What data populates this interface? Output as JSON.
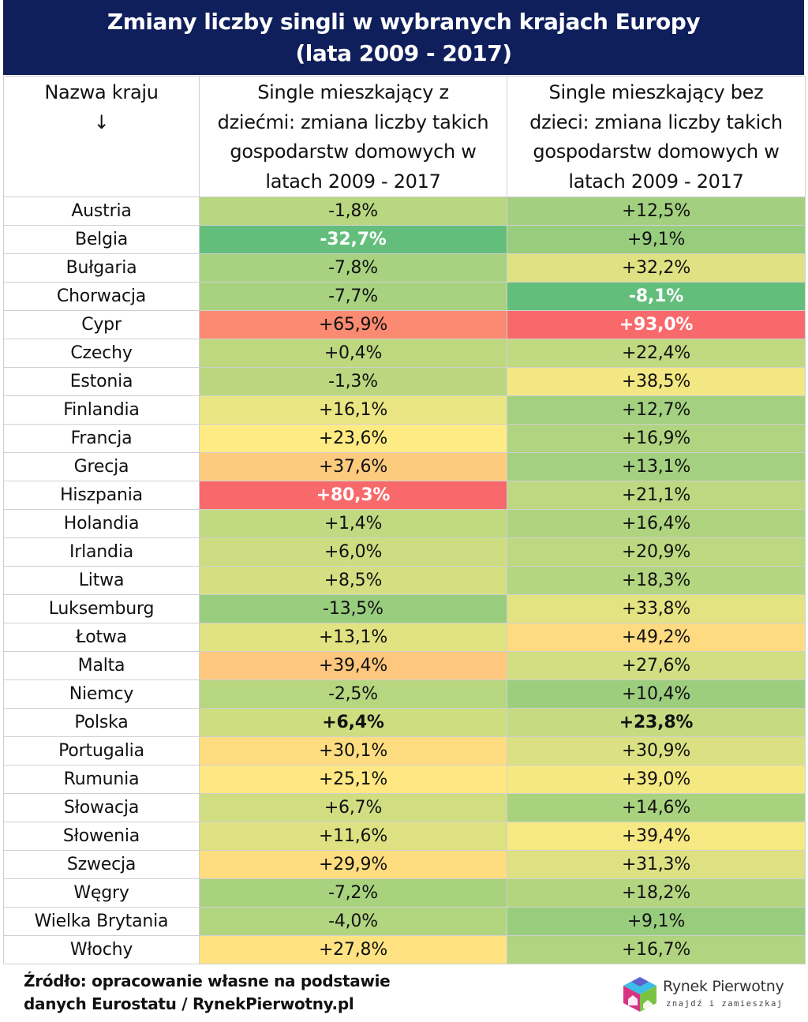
{
  "chart_data": {
    "type": "table",
    "title_lines": [
      "Zmiany liczby singli w wybranych krajach Europy",
      "(lata 2009 - 2017)"
    ],
    "columns": [
      {
        "key": "country",
        "header_lines": [
          "Nazwa kraju",
          "↓"
        ]
      },
      {
        "key": "with_children",
        "header_lines": [
          "Single mieszkający z",
          "dziećmi: zmiana liczby takich",
          "gospodarstw domowych w",
          "latach 2009 - 2017"
        ]
      },
      {
        "key": "without_children",
        "header_lines": [
          "Single mieszkający bez",
          "dzieci: zmiana liczby takich",
          "gospodarstw domowych w",
          "latach 2009 - 2017"
        ]
      }
    ],
    "rows": [
      {
        "country": "Austria",
        "with_children": "-1,8%",
        "without_children": "+12,5%"
      },
      {
        "country": "Belgia",
        "with_children": "-32,7%",
        "without_children": "+9,1%"
      },
      {
        "country": "Bułgaria",
        "with_children": "-7,8%",
        "without_children": "+32,2%"
      },
      {
        "country": "Chorwacja",
        "with_children": "-7,7%",
        "without_children": "-8,1%"
      },
      {
        "country": "Cypr",
        "with_children": "+65,9%",
        "without_children": "+93,0%"
      },
      {
        "country": "Czechy",
        "with_children": "+0,4%",
        "without_children": "+22,4%"
      },
      {
        "country": "Estonia",
        "with_children": "-1,3%",
        "without_children": "+38,5%"
      },
      {
        "country": "Finlandia",
        "with_children": "+16,1%",
        "without_children": "+12,7%"
      },
      {
        "country": "Francja",
        "with_children": "+23,6%",
        "without_children": "+16,9%"
      },
      {
        "country": "Grecja",
        "with_children": "+37,6%",
        "without_children": "+13,1%"
      },
      {
        "country": "Hiszpania",
        "with_children": "+80,3%",
        "without_children": "+21,1%"
      },
      {
        "country": "Holandia",
        "with_children": "+1,4%",
        "without_children": "+16,4%"
      },
      {
        "country": "Irlandia",
        "with_children": "+6,0%",
        "without_children": "+20,9%"
      },
      {
        "country": "Litwa",
        "with_children": "+8,5%",
        "without_children": "+18,3%"
      },
      {
        "country": "Luksemburg",
        "with_children": "-13,5%",
        "without_children": "+33,8%"
      },
      {
        "country": "Łotwa",
        "with_children": "+13,1%",
        "without_children": "+49,2%"
      },
      {
        "country": "Malta",
        "with_children": "+39,4%",
        "without_children": "+27,6%"
      },
      {
        "country": "Niemcy",
        "with_children": "-2,5%",
        "without_children": "+10,4%"
      },
      {
        "country": "Polska",
        "with_children": "+6,4%",
        "without_children": "+23,8%"
      },
      {
        "country": "Portugalia",
        "with_children": "+30,1%",
        "without_children": "+30,9%"
      },
      {
        "country": "Rumunia",
        "with_children": "+25,1%",
        "without_children": "+39,0%"
      },
      {
        "country": "Słowacja",
        "with_children": "+6,7%",
        "without_children": "+14,6%"
      },
      {
        "country": "Słowenia",
        "with_children": "+11,6%",
        "without_children": "+39,4%"
      },
      {
        "country": "Szwecja",
        "with_children": "+29,9%",
        "without_children": "+31,3%"
      },
      {
        "country": "Węgry",
        "with_children": "-7,2%",
        "without_children": "+18,2%"
      },
      {
        "country": "Wielka Brytania",
        "with_children": "-4,0%",
        "without_children": "+9,1%"
      },
      {
        "country": "Włochy",
        "with_children": "+27,8%",
        "without_children": "+16,7%"
      }
    ],
    "highlight": {
      "bold_white_cells": [
        [
          "Belgia",
          "with_children"
        ],
        [
          "Chorwacja",
          "without_children"
        ],
        [
          "Cypr",
          "without_children"
        ],
        [
          "Hiszpania",
          "with_children"
        ]
      ],
      "bold_black_row": "Polska"
    },
    "heatmap_colors": {
      "min": "#63be7b",
      "mid": "#ffeb84",
      "max": "#f8696b"
    }
  },
  "footer": {
    "lines": [
      "Źródło: opracowanie własne na podstawie",
      "danych Eurostatu / RynekPierwotny.pl"
    ]
  },
  "logo": {
    "brand": "Rynek Pierwotny",
    "tagline": "znajdź i zamieszkaj",
    "colors": {
      "cyan": "#3bbde8",
      "magenta": "#d63384",
      "green": "#7cc242",
      "purple": "#6f42c1"
    }
  },
  "colors": {
    "title_bg": "#0f1f5c",
    "title_text": "#ffffff",
    "grid_line": "#d0d0d0"
  }
}
